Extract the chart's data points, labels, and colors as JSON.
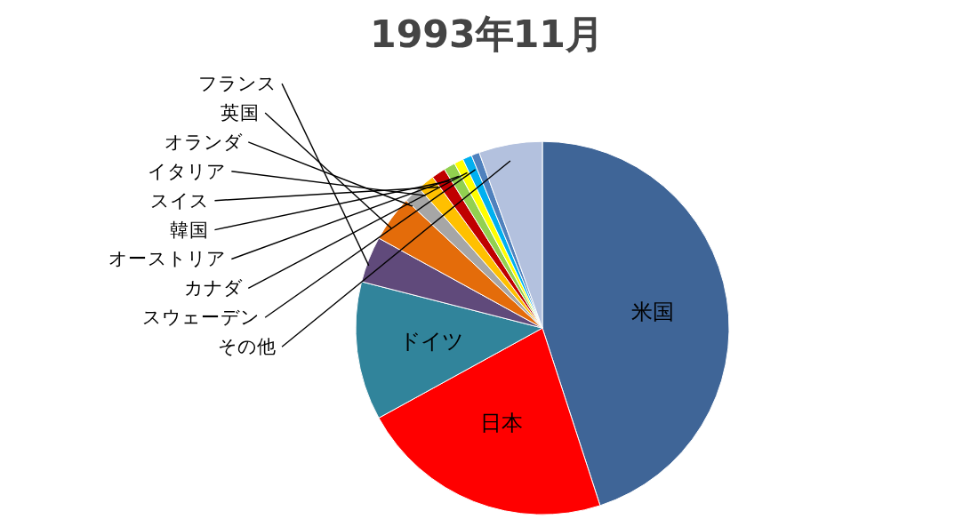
{
  "chart_data": {
    "type": "pie",
    "title": "1993年11月",
    "categories": [
      "米国",
      "日本",
      "ドイツ",
      "フランス",
      "英国",
      "オランダ",
      "イタリア",
      "スイス",
      "韓国",
      "オーストリア",
      "カナダ",
      "スウェーデン",
      "その他"
    ],
    "values": [
      45,
      22,
      12,
      4,
      4,
      1.5,
      1.5,
      1.2,
      1,
      0.8,
      0.8,
      0.7,
      5.5
    ],
    "colors": [
      "#3f6597",
      "#ff0000",
      "#31849b",
      "#604a7b",
      "#e46c0a",
      "#a6a6a6",
      "#ffc000",
      "#c00000",
      "#92d050",
      "#ffff00",
      "#00b0f0",
      "#4f81bd",
      "#b3c1de"
    ]
  }
}
